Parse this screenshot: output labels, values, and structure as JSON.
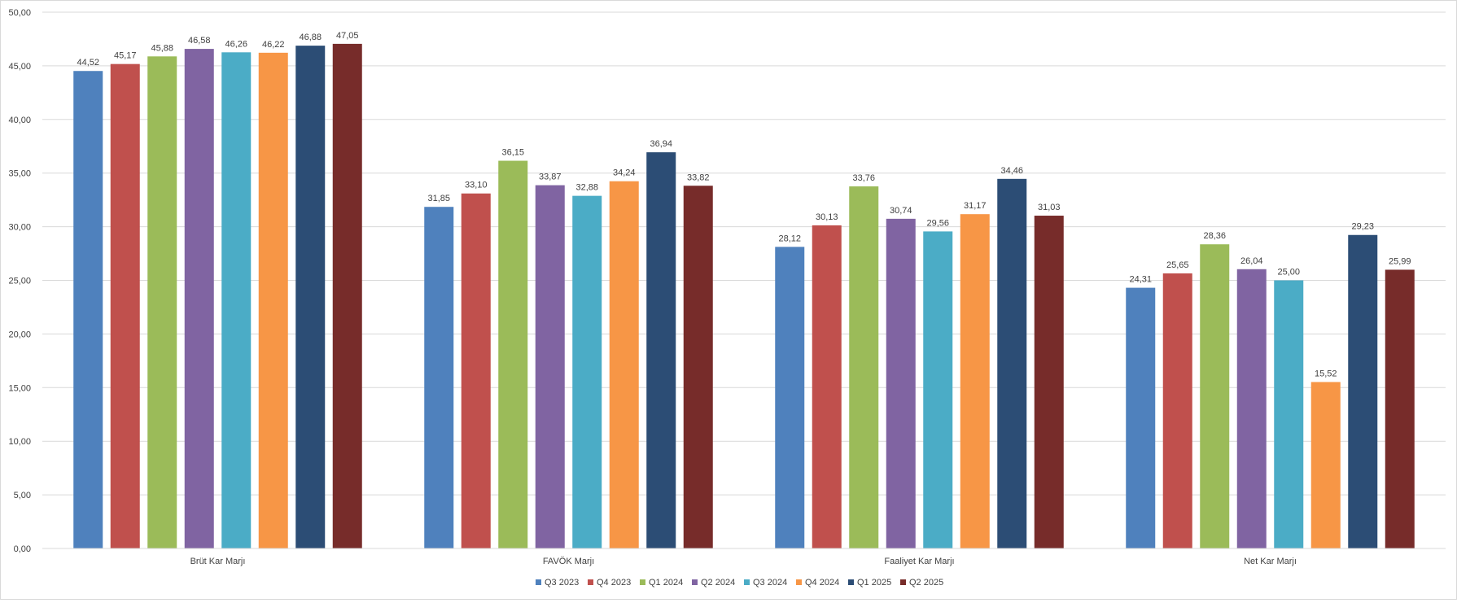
{
  "chart_data": {
    "type": "bar",
    "categories": [
      "Brüt Kar Marjı",
      "FAVÖK Marjı",
      "Faaliyet Kar Marjı",
      "Net Kar Marjı"
    ],
    "series": [
      {
        "name": "Q3 2023",
        "color": "#4f81bd",
        "values": [
          44.52,
          31.85,
          28.12,
          24.31
        ],
        "labels": [
          "44,52",
          "31,85",
          "28,12",
          "24,31"
        ]
      },
      {
        "name": "Q4 2023",
        "color": "#c0504d",
        "values": [
          45.17,
          33.1,
          30.13,
          25.65
        ],
        "labels": [
          "45,17",
          "33,10",
          "30,13",
          "25,65"
        ]
      },
      {
        "name": "Q1 2024",
        "color": "#9bbb59",
        "values": [
          45.88,
          36.15,
          33.76,
          28.36
        ],
        "labels": [
          "45,88",
          "36,15",
          "33,76",
          "28,36"
        ]
      },
      {
        "name": "Q2 2024",
        "color": "#8064a2",
        "values": [
          46.58,
          33.87,
          30.74,
          26.04
        ],
        "labels": [
          "46,58",
          "33,87",
          "30,74",
          "26,04"
        ]
      },
      {
        "name": "Q3 2024",
        "color": "#4bacc6",
        "values": [
          46.26,
          32.88,
          29.56,
          25.0
        ],
        "labels": [
          "46,26",
          "32,88",
          "29,56",
          "25,00"
        ]
      },
      {
        "name": "Q4 2024",
        "color": "#f79646",
        "values": [
          46.22,
          34.24,
          31.17,
          15.52
        ],
        "labels": [
          "46,22",
          "34,24",
          "31,17",
          "15,52"
        ]
      },
      {
        "name": "Q1 2025",
        "color": "#2c4d75",
        "values": [
          46.88,
          36.94,
          34.46,
          29.23
        ],
        "labels": [
          "46,88",
          "36,94",
          "34,46",
          "29,23"
        ]
      },
      {
        "name": "Q2 2025",
        "color": "#772c2a",
        "values": [
          47.05,
          33.82,
          31.03,
          25.99
        ],
        "labels": [
          "47,05",
          "33,82",
          "31,03",
          "25,99"
        ]
      }
    ],
    "yticks": [
      "0,00",
      "5,00",
      "10,00",
      "15,00",
      "20,00",
      "25,00",
      "30,00",
      "35,00",
      "40,00",
      "45,00",
      "50,00"
    ],
    "ylim": [
      0,
      50
    ],
    "grid": true,
    "legend_position": "bottom",
    "title": "",
    "xlabel": "",
    "ylabel": ""
  }
}
